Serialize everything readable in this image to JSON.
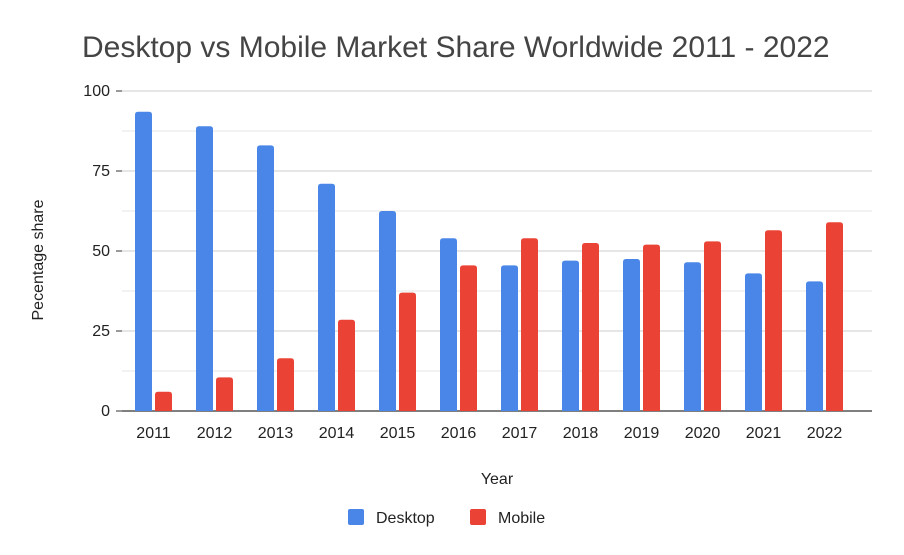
{
  "chart_data": {
    "type": "bar",
    "title": "Desktop vs Mobile Market Share Worldwide 2011 - 2022",
    "xlabel": "Year",
    "ylabel": "Pecentage share",
    "ylim": [
      0,
      100
    ],
    "yticks": [
      "0",
      "25",
      "50",
      "75",
      "100"
    ],
    "grid": true,
    "legend_position": "bottom",
    "categories": [
      "2011",
      "2012",
      "2013",
      "2014",
      "2015",
      "2016",
      "2017",
      "2018",
      "2019",
      "2020",
      "2021",
      "2022"
    ],
    "series": [
      {
        "name": "Desktop",
        "color": "#4a86e8",
        "values": [
          93.5,
          89,
          83,
          71,
          62.5,
          54,
          45.5,
          47,
          47.5,
          46.5,
          43,
          40.5
        ]
      },
      {
        "name": "Mobile",
        "color": "#ea4335",
        "values": [
          6,
          10.5,
          16.5,
          28.5,
          37,
          45.5,
          54,
          52.5,
          52,
          53,
          56.5,
          59
        ]
      }
    ]
  }
}
